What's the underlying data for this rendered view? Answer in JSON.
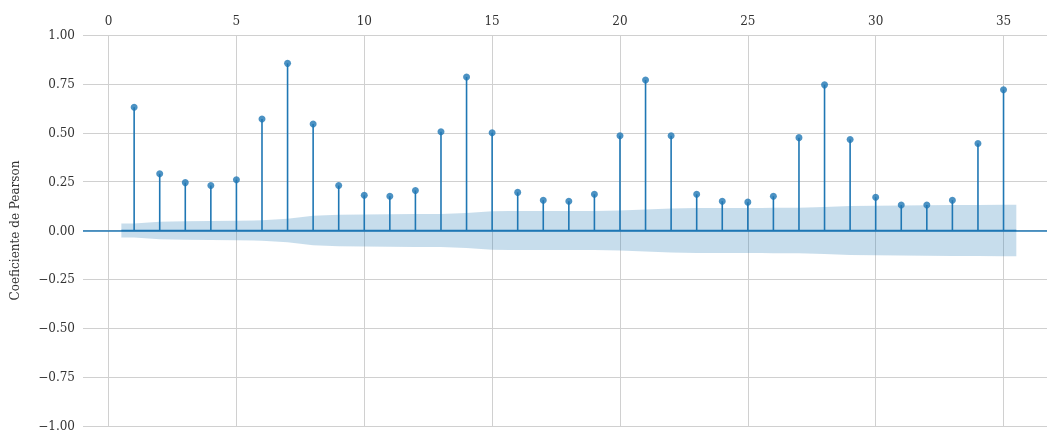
{
  "chart_data": {
    "type": "lollipop",
    "ylabel": "Coeficiente de Pearson",
    "x": [
      1,
      2,
      3,
      4,
      5,
      6,
      7,
      8,
      9,
      10,
      11,
      12,
      13,
      14,
      15,
      16,
      17,
      18,
      19,
      20,
      21,
      22,
      23,
      24,
      25,
      26,
      27,
      28,
      29,
      30,
      31,
      32,
      33,
      34,
      35
    ],
    "series": [
      {
        "color": "#1f77b4",
        "values": [
          0.63,
          0.29,
          0.245,
          0.23,
          0.26,
          0.57,
          0.855,
          0.545,
          0.23,
          0.18,
          0.175,
          0.205,
          0.505,
          0.785,
          0.5,
          0.195,
          0.155,
          0.15,
          0.185,
          0.485,
          0.77,
          0.485,
          0.185,
          0.15,
          0.145,
          0.175,
          0.475,
          0.745,
          0.465,
          0.17,
          0.13,
          0.13,
          0.155,
          0.445,
          0.72
        ]
      },
      {
        "type": "line",
        "marker": "none",
        "color": "#1f77b4",
        "x": [
          0.5,
          1,
          2,
          3,
          4,
          5,
          6,
          7,
          8,
          9,
          10,
          11,
          12,
          13,
          14,
          15,
          16,
          17,
          18,
          19,
          20,
          21,
          22,
          23,
          24,
          25,
          26,
          27,
          28,
          29,
          30,
          31,
          32,
          33,
          34,
          35,
          35.5
        ],
        "values": [
          0,
          0,
          0,
          0,
          0,
          0,
          0,
          0,
          0,
          0,
          0,
          0,
          0,
          0,
          0,
          0,
          0,
          0,
          0,
          0,
          0,
          0,
          0,
          0,
          0,
          0,
          0,
          0,
          0,
          0,
          0,
          0,
          0,
          0,
          0,
          0,
          0
        ],
        "upper": [
          0.036,
          0.036,
          0.045,
          0.047,
          0.048,
          0.05,
          0.052,
          0.06,
          0.075,
          0.08,
          0.082,
          0.083,
          0.084,
          0.085,
          0.09,
          0.098,
          0.1,
          0.1,
          0.1,
          0.1,
          0.102,
          0.107,
          0.113,
          0.115,
          0.115,
          0.115,
          0.116,
          0.117,
          0.12,
          0.125,
          0.127,
          0.128,
          0.129,
          0.13,
          0.131,
          0.132,
          0.132
        ],
        "lower": [
          -0.036,
          -0.036,
          -0.045,
          -0.047,
          -0.048,
          -0.05,
          -0.052,
          -0.06,
          -0.075,
          -0.08,
          -0.082,
          -0.083,
          -0.084,
          -0.085,
          -0.09,
          -0.098,
          -0.1,
          -0.1,
          -0.1,
          -0.1,
          -0.102,
          -0.107,
          -0.113,
          -0.115,
          -0.115,
          -0.115,
          -0.116,
          -0.117,
          -0.12,
          -0.125,
          -0.127,
          -0.128,
          -0.129,
          -0.13,
          -0.131,
          -0.132,
          -0.132
        ]
      }
    ],
    "xlim": [
      -1,
      36.7
    ],
    "xticks": [
      0,
      5,
      10,
      15,
      20,
      25,
      30,
      35
    ],
    "ylim": [
      -1,
      1
    ],
    "yticks": [
      {
        "value": -1,
        "label": "−1.00"
      },
      {
        "value": -0.75,
        "label": "−0.75"
      },
      {
        "value": -0.5,
        "label": "−0.50"
      },
      {
        "value": -0.25,
        "label": "−0.25"
      },
      {
        "value": 0,
        "label": "0.00"
      },
      {
        "value": 0.25,
        "label": "0.25"
      },
      {
        "value": 0.5,
        "label": "0.50"
      },
      {
        "value": 0.75,
        "label": "0.75"
      },
      {
        "value": 1,
        "label": "1.00"
      }
    ],
    "ref_lines": [
      {
        "axis": "y",
        "value": 0,
        "color": "#1f77b4"
      }
    ],
    "grid": true,
    "marker": "circle"
  }
}
